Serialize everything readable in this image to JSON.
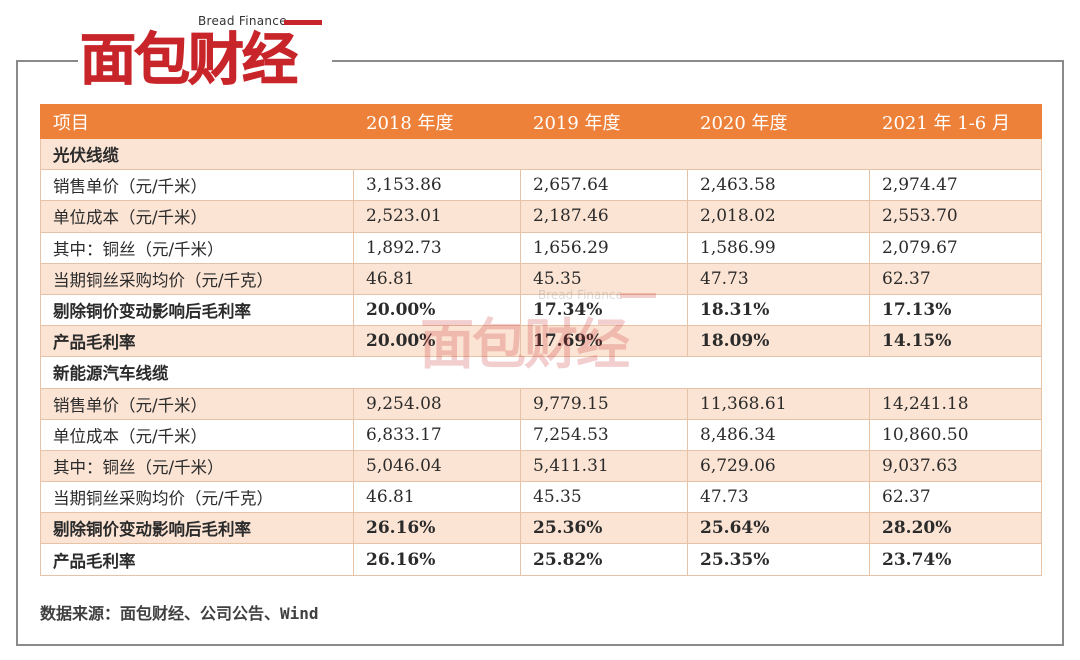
{
  "brand": {
    "name_cn": "面包财经",
    "name_en": "Bread Finance",
    "color": "#c8252a"
  },
  "table": {
    "header": [
      "项目",
      "2018 年度",
      "2019 年度",
      "2020 年度",
      "2021 年 1-6 月"
    ],
    "header_color": "#ee8139",
    "rows": [
      {
        "cells": [
          "光伏线缆",
          "",
          "",
          "",
          ""
        ],
        "section": true
      },
      {
        "cells": [
          "销售单价（元/千米）",
          "3,153.86",
          "2,657.64",
          "2,463.58",
          "2,974.47"
        ]
      },
      {
        "cells": [
          "单位成本（元/千米）",
          "2,523.01",
          "2,187.46",
          "2,018.02",
          "2,553.70"
        ]
      },
      {
        "cells": [
          "其中：铜丝（元/千米）",
          "1,892.73",
          "1,656.29",
          "1,586.99",
          "2,079.67"
        ]
      },
      {
        "cells": [
          "当期铜丝采购均价（元/千克）",
          "46.81",
          "45.35",
          "47.73",
          "62.37"
        ]
      },
      {
        "cells": [
          "剔除铜价变动影响后毛利率",
          "20.00%",
          "17.34%",
          "18.31%",
          "17.13%"
        ],
        "bold": true
      },
      {
        "cells": [
          "产品毛利率",
          "20.00%",
          "17.69%",
          "18.09%",
          "14.15%"
        ],
        "bold": true
      },
      {
        "cells": [
          "新能源汽车线缆",
          "",
          "",
          "",
          ""
        ],
        "section": true
      },
      {
        "cells": [
          "销售单价（元/千米）",
          "9,254.08",
          "9,779.15",
          "11,368.61",
          "14,241.18"
        ]
      },
      {
        "cells": [
          "单位成本（元/千米）",
          "6,833.17",
          "7,254.53",
          "8,486.34",
          "10,860.50"
        ]
      },
      {
        "cells": [
          "其中：铜丝（元/千米）",
          "5,046.04",
          "5,411.31",
          "6,729.06",
          "9,037.63"
        ]
      },
      {
        "cells": [
          "当期铜丝采购均价（元/千克）",
          "46.81",
          "45.35",
          "47.73",
          "62.37"
        ]
      },
      {
        "cells": [
          "剔除铜价变动影响后毛利率",
          "26.16%",
          "25.36%",
          "25.64%",
          "28.20%"
        ],
        "bold": true
      },
      {
        "cells": [
          "产品毛利率",
          "26.16%",
          "25.82%",
          "25.35%",
          "23.74%"
        ],
        "bold": true
      }
    ]
  },
  "source": "数据来源：面包财经、公司公告、Wind"
}
